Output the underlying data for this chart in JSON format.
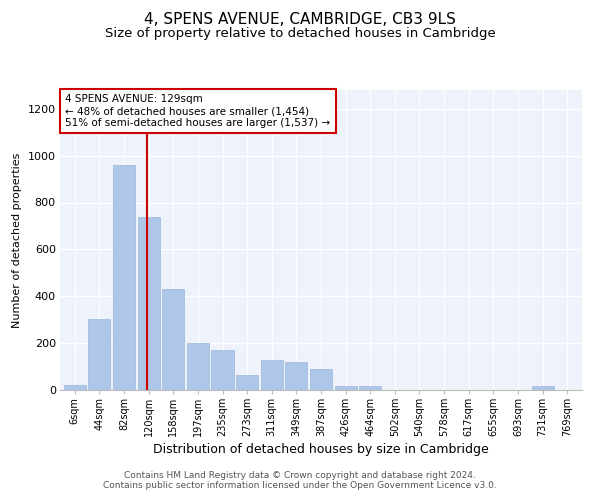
{
  "title": "4, SPENS AVENUE, CAMBRIDGE, CB3 9LS",
  "subtitle": "Size of property relative to detached houses in Cambridge",
  "xlabel": "Distribution of detached houses by size in Cambridge",
  "ylabel": "Number of detached properties",
  "categories": [
    "6sqm",
    "44sqm",
    "82sqm",
    "120sqm",
    "158sqm",
    "197sqm",
    "235sqm",
    "273sqm",
    "311sqm",
    "349sqm",
    "387sqm",
    "426sqm",
    "464sqm",
    "502sqm",
    "540sqm",
    "578sqm",
    "617sqm",
    "655sqm",
    "693sqm",
    "731sqm",
    "769sqm"
  ],
  "values": [
    20,
    305,
    960,
    740,
    430,
    200,
    170,
    65,
    130,
    120,
    90,
    15,
    15,
    0,
    0,
    0,
    0,
    0,
    0,
    15,
    0
  ],
  "bar_color": "#aec6e8",
  "bar_edge_color": "#9ab8d8",
  "vline_color": "#cc0000",
  "annotation_text": "4 SPENS AVENUE: 129sqm\n← 48% of detached houses are smaller (1,454)\n51% of semi-detached houses are larger (1,537) →",
  "annotation_box_color": "#ffffff",
  "annotation_box_edge_color": "#cc0000",
  "ylim": [
    0,
    1280
  ],
  "yticks": [
    0,
    200,
    400,
    600,
    800,
    1000,
    1200
  ],
  "footer_text": "Contains HM Land Registry data © Crown copyright and database right 2024.\nContains public sector information licensed under the Open Government Licence v3.0.",
  "bg_color": "#eef2fa",
  "grid_color": "#ffffff",
  "title_fontsize": 11,
  "subtitle_fontsize": 9.5,
  "xlabel_fontsize": 9,
  "ylabel_fontsize": 8,
  "footer_fontsize": 6.5,
  "annotation_fontsize": 7.5,
  "tick_fontsize": 7
}
